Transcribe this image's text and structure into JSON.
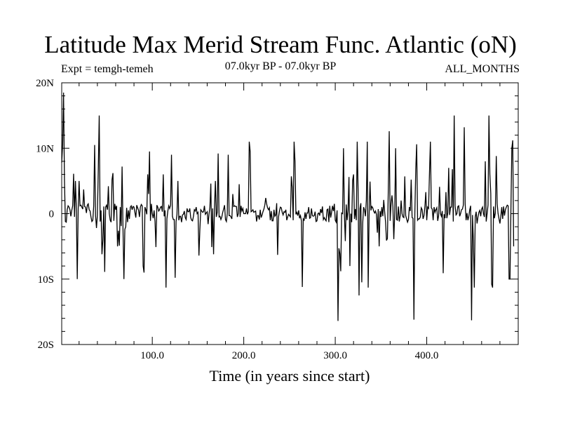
{
  "chart_data": {
    "type": "line",
    "title": "Latitude Max Merid Stream Func. Atlantic (oN)",
    "subtitle_left": "Expt = temgh-temeh",
    "subtitle_center": "07.0kyr BP - 07.0kyr BP",
    "subtitle_right": "ALL_MONTHS",
    "xlabel": "Time (in years since start)",
    "ylabel": "",
    "xlim": [
      1,
      500
    ],
    "ylim": [
      -20,
      20
    ],
    "x_ticks": [
      {
        "value": 100,
        "label": "100.0"
      },
      {
        "value": 200,
        "label": "200.0"
      },
      {
        "value": 300,
        "label": "300.0"
      },
      {
        "value": 400,
        "label": "400.0"
      }
    ],
    "y_ticks": [
      {
        "value": 20,
        "label": "20N"
      },
      {
        "value": 10,
        "label": "10N"
      },
      {
        "value": 0,
        "label": "0"
      },
      {
        "value": -10,
        "label": "10S"
      },
      {
        "value": -20,
        "label": "20S"
      }
    ],
    "series": [
      {
        "name": "latitude_max_stream_function",
        "x_start": 1,
        "x_step": 1,
        "values": [
          7.8,
          10.5,
          18.5,
          5.2,
          -1.2,
          -1.3,
          0.6,
          1.2,
          1.0,
          0.6,
          -0.4,
          0.5,
          1.2,
          6.1,
          -0.5,
          5.0,
          0.8,
          -10.0,
          0.6,
          5.0,
          1.2,
          1.3,
          1.0,
          0.7,
          3.7,
          1.1,
          1.0,
          0.1,
          1.3,
          1.5,
          0.6,
          0.4,
          -0.5,
          -1.2,
          -1.0,
          1.2,
          10.5,
          -0.3,
          -2.2,
          -0.2,
          6.9,
          15.0,
          -1.2,
          0.5,
          -6.2,
          -4.0,
          1.1,
          -8.9,
          1.0,
          1.3,
          0.6,
          4.2,
          0.0,
          -1.0,
          -1.3,
          5.2,
          6.2,
          -1.1,
          1.5,
          0.6,
          1.2,
          -5.0,
          -2.6,
          -4.9,
          1.0,
          -1.9,
          7.2,
          -2.3,
          -10.0,
          -2.4,
          -2.0,
          0.9,
          -1.3,
          0.5,
          -0.8,
          1.0,
          1.2,
          0.6,
          1.1,
          1.0,
          0.2,
          -0.6,
          1.3,
          0.9,
          0.5,
          -0.5,
          1.0,
          1.4,
          1.2,
          -8.0,
          -9.0,
          1.0,
          0.6,
          -0.1,
          6.0,
          3.0,
          9.5,
          -1.1,
          1.5,
          0.0,
          -0.7,
          0.5,
          -1.2,
          -5.1,
          1.3,
          1.0,
          0.4,
          0.6,
          1.0,
          1.1,
          0.3,
          6.0,
          -0.4,
          0.5,
          -11.3,
          -0.8,
          0.4,
          1.2,
          0.8,
          1.3,
          9.0,
          -0.4,
          -0.9,
          -0.9,
          -9.8,
          -1.2,
          -0.1,
          5.0,
          -1.0,
          -0.4,
          -0.4,
          -1.3,
          -0.2,
          -0.1,
          0.4,
          -0.6,
          -0.9,
          0.8,
          0.3,
          0.3,
          0.8,
          -0.6,
          -1.0,
          -1.1,
          -0.4,
          0.6,
          0.4,
          1.0,
          0.0,
          0.2,
          -6.4,
          -2.5,
          0.6,
          0.4,
          0.2,
          0.3,
          1.2,
          -0.1,
          0.1,
          0.3,
          -1.6,
          -0.1,
          1.0,
          4.6,
          -5.1,
          0.8,
          -6.2,
          1.0,
          5.0,
          -0.5,
          0.2,
          9.2,
          -0.5,
          -0.4,
          -0.9,
          -0.5,
          0.2,
          0.7,
          1.3,
          -0.9,
          -1.2,
          0.0,
          9.0,
          -0.3,
          -0.3,
          -0.5,
          -0.8,
          3.0,
          1.1,
          1.2,
          1.1,
          1.1,
          -0.5,
          0.0,
          4.5,
          -0.5,
          1.2,
          0.4,
          0.8,
          0.0,
          0.0,
          0.0,
          0.8,
          -0.1,
          0.3,
          11.0,
          9.5,
          0.3,
          0.4,
          0.6,
          0.2,
          0.3,
          0.4,
          -1.2,
          -0.3,
          -0.3,
          -0.9,
          0.6,
          -0.6,
          -0.2,
          0.3,
          0.7,
          1.3,
          2.4,
          1.5,
          0.9,
          0.6,
          0.9,
          -1.0,
          0.4,
          -1.1,
          -1.1,
          0.6,
          -0.4,
          -0.2,
          1.6,
          -6.3,
          -0.5,
          0.4,
          1.0,
          0.9,
          0.2,
          -0.2,
          0.3,
          0.2,
          0.6,
          -1.0,
          -0.5,
          -0.1,
          -0.3,
          -0.5,
          5.7,
          4.0,
          -1.0,
          11.0,
          8.0,
          -0.1,
          0.2,
          -0.3,
          0.5,
          -0.7,
          -0.3,
          -1.1,
          -11.2,
          -0.8,
          -1.0,
          0.2,
          -0.8,
          0.1,
          0.1,
          1.0,
          -0.7,
          -0.6,
          0.8,
          -0.3,
          -0.4,
          -0.3,
          0.3,
          -1.2,
          -1.1,
          0.0,
          0.1,
          -0.3,
          0.7,
          0.1,
          1.1,
          -0.9,
          -0.6,
          -0.9,
          -1.1,
          0.6,
          0.7,
          -1.3,
          1.2,
          -0.6,
          0.2,
          1.2,
          0.4,
          1.5,
          -1.0,
          -1.3,
          0.5,
          -16.4,
          -5.3,
          -6.1,
          -8.8,
          0.1,
          0.0,
          10.0,
          -0.2,
          -4.2,
          1.4,
          -1.0,
          0.6,
          5.6,
          -8.0,
          0.0,
          -1.3,
          5.1,
          6.0,
          -0.8,
          0.7,
          -1.0,
          11.0,
          3.4,
          -12.5,
          0.8,
          1.6,
          -10.5,
          -1.5,
          1.0,
          0.6,
          -0.4,
          2.1,
          11.0,
          -11.3,
          -0.3,
          4.9,
          0.5,
          1.1,
          0.9,
          0.4,
          0.1,
          0.4,
          -0.1,
          -2.9,
          0.7,
          -5.0,
          0.4,
          -0.5,
          1.0,
          -0.4,
          2.1,
          0.3,
          -1.3,
          -4.1,
          -3.8,
          3.8,
          12.6,
          -1.1,
          1.5,
          2.8,
          1.1,
          -3.9,
          0.0,
          10.0,
          -0.9,
          -1.0,
          1.1,
          -1.2,
          -0.3,
          2.0,
          0.0,
          -0.5,
          -0.6,
          5.7,
          -0.3,
          -0.8,
          -1.3,
          -0.9,
          1.0,
          0.4,
          5.2,
          -0.6,
          -0.7,
          -16.2,
          0.0,
          6.8,
          10.6,
          -1.0,
          -0.8,
          -0.8,
          -0.5,
          0.9,
          0.6,
          -0.8,
          -0.3,
          1.1,
          3.3,
          -1.0,
          1.0,
          0.8,
          6.2,
          11.0,
          0.9,
          0.7,
          -1.0,
          1.0,
          0.2,
          0.6,
          0.9,
          -1.1,
          -0.3,
          4.1,
          0.0,
          -0.4,
          0.4,
          -9.1,
          -0.1,
          -0.7,
          3.3,
          -0.7,
          0.1,
          7.0,
          -0.2,
          1.0,
          1.0,
          6.8,
          -1.2,
          15.0,
          1.2,
          -0.2,
          0.0,
          1.1,
          1.2,
          -0.4,
          0.0,
          0.6,
          0.7,
          1.3,
          13.2,
          1.5,
          -1.0,
          0.1,
          -1.0,
          -0.4,
          0.6,
          1.2,
          -16.3,
          -0.2,
          -4.3,
          -11.3,
          -0.5,
          0.3,
          -1.5,
          -0.5,
          0.2,
          0.5,
          -0.4,
          0.7,
          1.0,
          0.0,
          -0.5,
          8.0,
          -1.2,
          0.0,
          1.3,
          15.0,
          6.0,
          3.1,
          -10.8,
          -11.3,
          1.1,
          -0.7,
          0.1,
          8.8,
          1.5,
          0.0,
          -0.8,
          -1.5,
          -0.4,
          1.0,
          -0.8,
          1.1,
          -0.3,
          0.6,
          1.0,
          1.3,
          1.2,
          -10.0,
          -10.0,
          0.4,
          10.0,
          11.2,
          -5.0
        ]
      }
    ]
  }
}
